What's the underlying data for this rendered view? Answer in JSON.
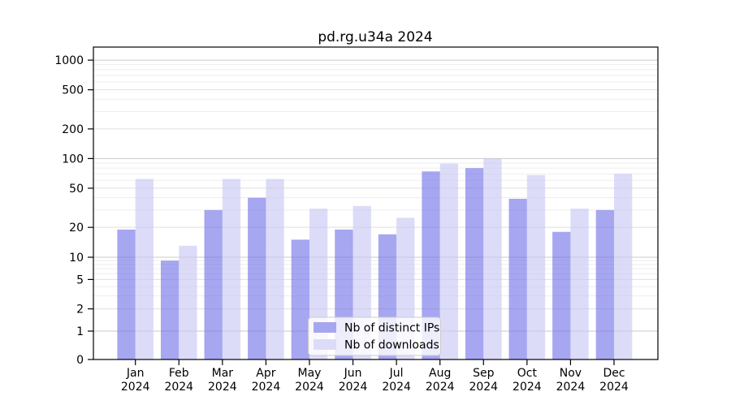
{
  "chart_data": {
    "type": "bar",
    "title": "pd.rg.u34a 2024",
    "categories": [
      "Jan",
      "Feb",
      "Mar",
      "Apr",
      "May",
      "Jun",
      "Jul",
      "Aug",
      "Sep",
      "Oct",
      "Nov",
      "Dec"
    ],
    "x_year": "2024",
    "series": [
      {
        "name": "Nb of distinct IPs",
        "values": [
          19,
          9,
          30,
          40,
          15,
          19,
          17,
          74,
          80,
          39,
          18,
          30
        ],
        "color": "#7070e8",
        "legend_swatch": "#a6a6f0"
      },
      {
        "name": "Nb of downloads",
        "values": [
          62,
          13,
          62,
          62,
          31,
          33,
          25,
          89,
          100,
          68,
          31,
          70
        ],
        "color": "#c6c6f5",
        "legend_swatch": "#dcdcf8"
      }
    ],
    "y_ticks": [
      "1000",
      "500",
      "200",
      "100",
      "50",
      "20",
      "10",
      "5",
      "2",
      "1",
      "0"
    ],
    "y_tick_values": [
      1000,
      500,
      200,
      100,
      50,
      20,
      10,
      5,
      2,
      1,
      0
    ],
    "yscale": "log (with 0 baseline)",
    "ylim": [
      0,
      1400
    ],
    "grid": "on",
    "legend_position": "lower center",
    "colors": {
      "major_gridline": "#c9c9c9",
      "sub_gridline": "#dfdfdf",
      "minor_gridline": "#ededed",
      "spine": "#000000",
      "legend_border": "#cccccc"
    }
  }
}
